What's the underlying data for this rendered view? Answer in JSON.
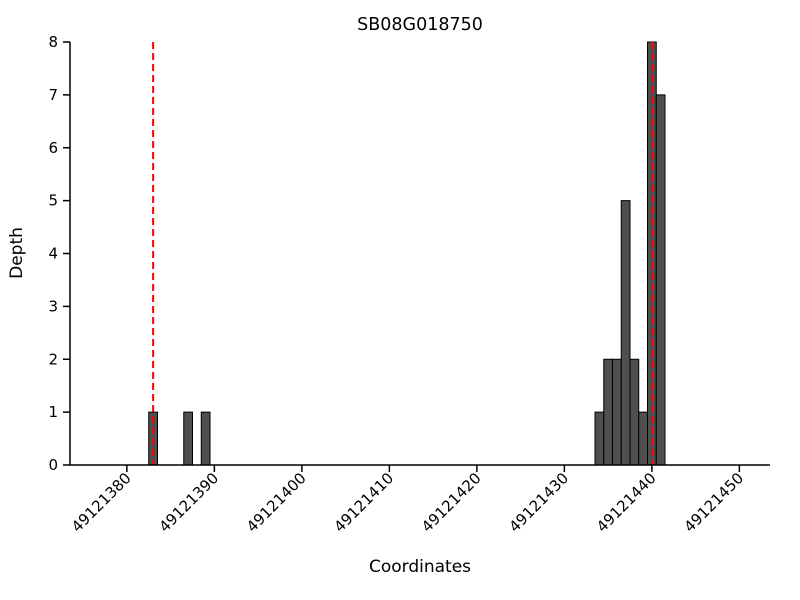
{
  "chart_data": {
    "type": "bar",
    "title": "SB08G018750",
    "xlabel": "Coordinates",
    "ylabel": "Depth",
    "xlim": [
      49121373.5,
      49121453.5
    ],
    "ylim": [
      0,
      8
    ],
    "x_ticks": [
      49121380,
      49121390,
      49121400,
      49121410,
      49121420,
      49121430,
      49121440,
      49121450
    ],
    "y_ticks": [
      0,
      1,
      2,
      3,
      4,
      5,
      6,
      7,
      8
    ],
    "bar_width": 1,
    "bars": [
      {
        "x": 49121383,
        "depth": 1
      },
      {
        "x": 49121387,
        "depth": 1
      },
      {
        "x": 49121389,
        "depth": 1
      },
      {
        "x": 49121434,
        "depth": 1
      },
      {
        "x": 49121435,
        "depth": 2
      },
      {
        "x": 49121436,
        "depth": 2
      },
      {
        "x": 49121437,
        "depth": 5
      },
      {
        "x": 49121438,
        "depth": 2
      },
      {
        "x": 49121439,
        "depth": 1
      },
      {
        "x": 49121440,
        "depth": 8
      },
      {
        "x": 49121441,
        "depth": 7
      }
    ],
    "vlines": {
      "positions": [
        49121383,
        49121440
      ],
      "style": "dashed",
      "color": "#ff0000"
    },
    "style": {
      "bar_fill": "#4f4f4f",
      "bar_edge": "#000000",
      "axis_color": "#000000",
      "background": "#ffffff"
    },
    "grid": "off",
    "legend": "none"
  }
}
